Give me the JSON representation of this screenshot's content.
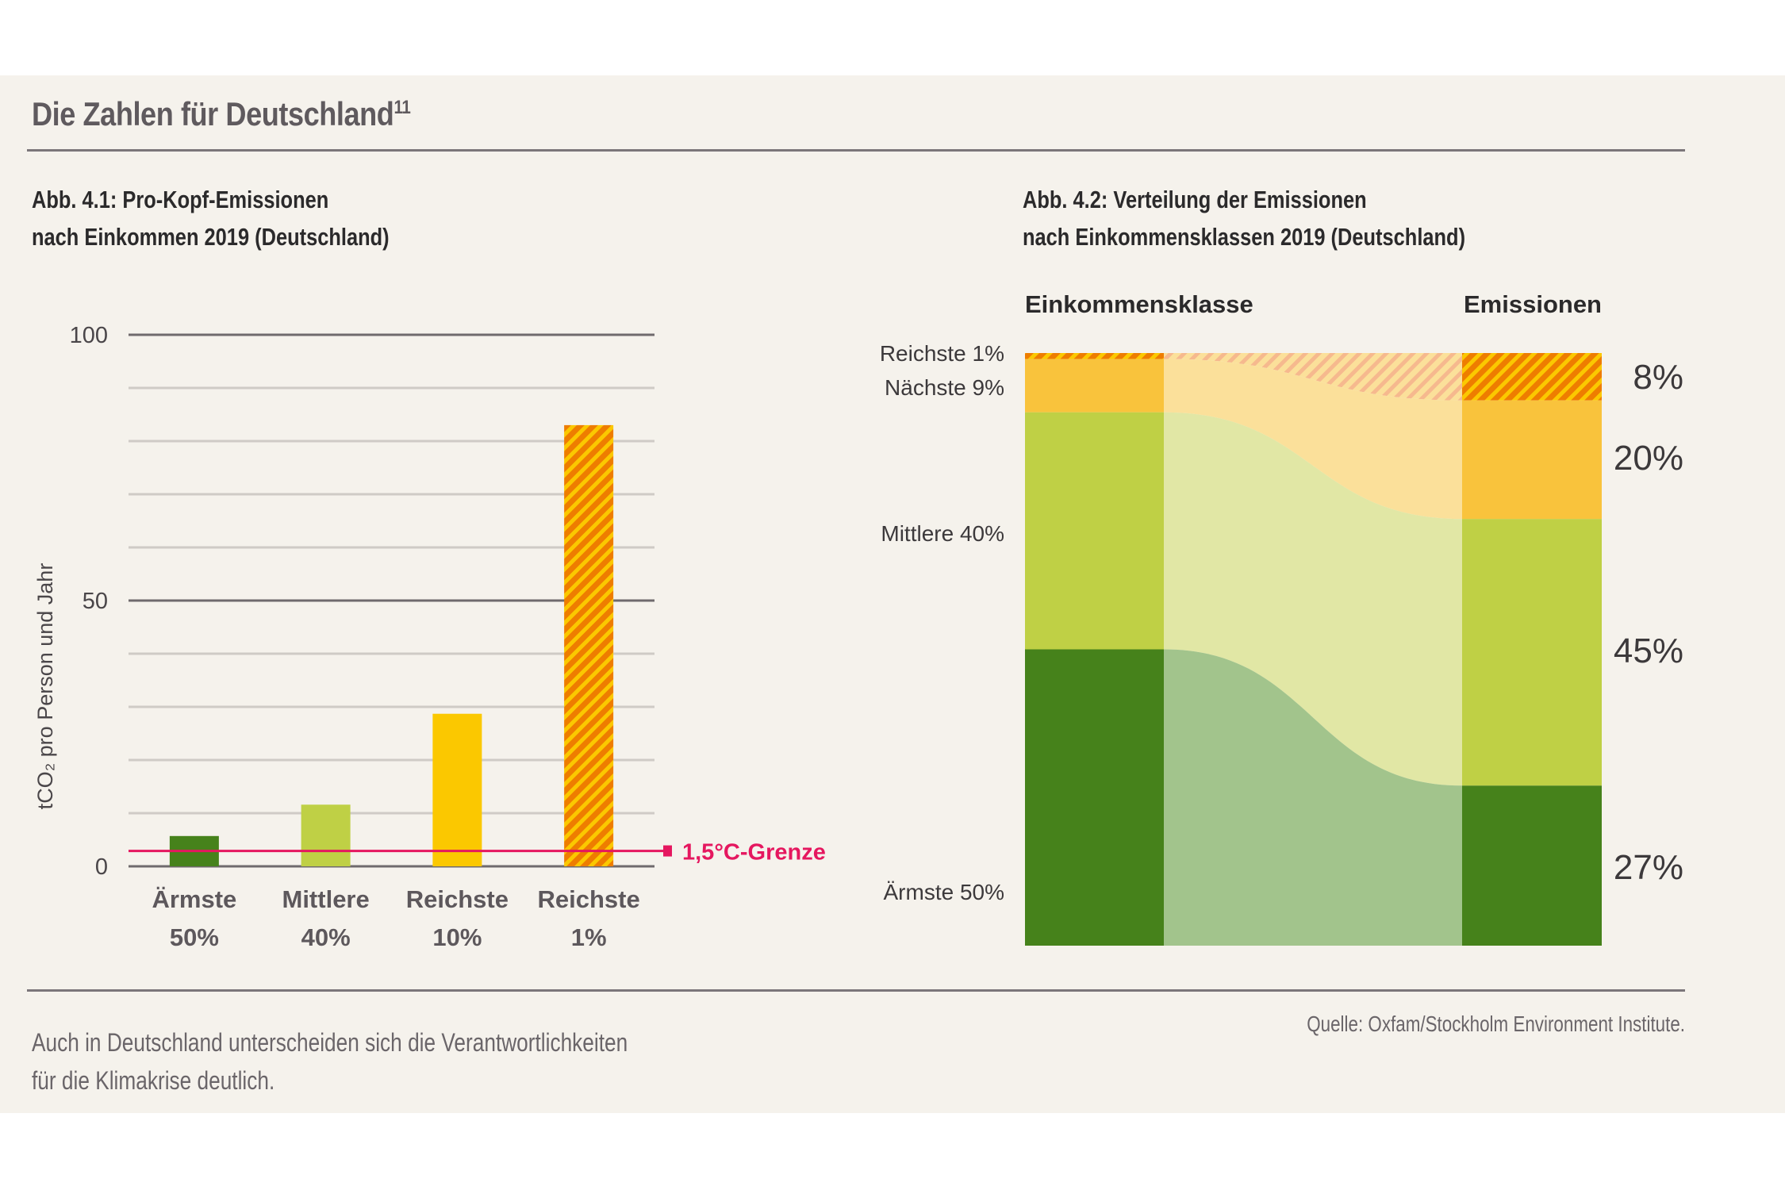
{
  "page": {
    "title": "Die Zahlen für Deutschland",
    "title_footnote": "11",
    "footer_lines": [
      "Auch in Deutschland unterscheiden sich die Verantwortlichkeiten",
      "für die Klimakrise deutlich."
    ],
    "source": "Quelle: Oxfam/Stockholm Environment Institute."
  },
  "colors": {
    "background": "#f5f2ec",
    "dark_green": "#46821b",
    "light_green": "#bfd045",
    "yellow": "#fbc800",
    "orange_mid": "#f9c33c",
    "orange_hatch": "#ee7d00",
    "limit_line": "#e5175f",
    "flow_dark_green": "#a2c48c",
    "flow_light_green": "#e1e7a5",
    "flow_orange": "#fbe09a"
  },
  "chart_data": [
    {
      "id": "fig-4-1",
      "type": "bar",
      "title_lines": [
        "Abb. 4.1: Pro-Kopf-Emissionen",
        "nach Einkommen 2019 (Deutschland)"
      ],
      "ylabel": "tCO₂ pro Person und Jahr",
      "ylim": [
        0,
        100
      ],
      "yticks": [
        0,
        50,
        100
      ],
      "minor_grid_step": 10,
      "grid": true,
      "categories": [
        [
          "Ärmste",
          "50%"
        ],
        [
          "Mittlere",
          "40%"
        ],
        [
          "Reichste",
          "10%"
        ],
        [
          "Reichste",
          "1%"
        ]
      ],
      "values": [
        5.7,
        11.6,
        28.7,
        83
      ],
      "bar_styles": [
        "dark_green",
        "light_green",
        "yellow",
        "hatched"
      ],
      "reference_line": {
        "value": 2.9,
        "label": "1,5°C-Grenze"
      }
    },
    {
      "id": "fig-4-2",
      "type": "sankey",
      "title_lines": [
        "Abb. 4.2: Verteilung der Emissionen",
        "nach Einkommensklassen 2019 (Deutschland)"
      ],
      "left_header": "Einkommensklasse",
      "right_header": "Emissionen",
      "groups": [
        {
          "label": "Reichste 1%",
          "population_share": 1,
          "emission_share": 8,
          "emission_label": "8%",
          "style": "hatched"
        },
        {
          "label": "Nächste 9%",
          "population_share": 9,
          "emission_share": 20,
          "emission_label": "20%",
          "style": "orange_mid"
        },
        {
          "label": "Mittlere 40%",
          "population_share": 40,
          "emission_share": 45,
          "emission_label": "45%",
          "style": "light_green"
        },
        {
          "label": "Ärmste 50%",
          "population_share": 50,
          "emission_share": 27,
          "emission_label": "27%",
          "style": "dark_green"
        }
      ]
    }
  ]
}
